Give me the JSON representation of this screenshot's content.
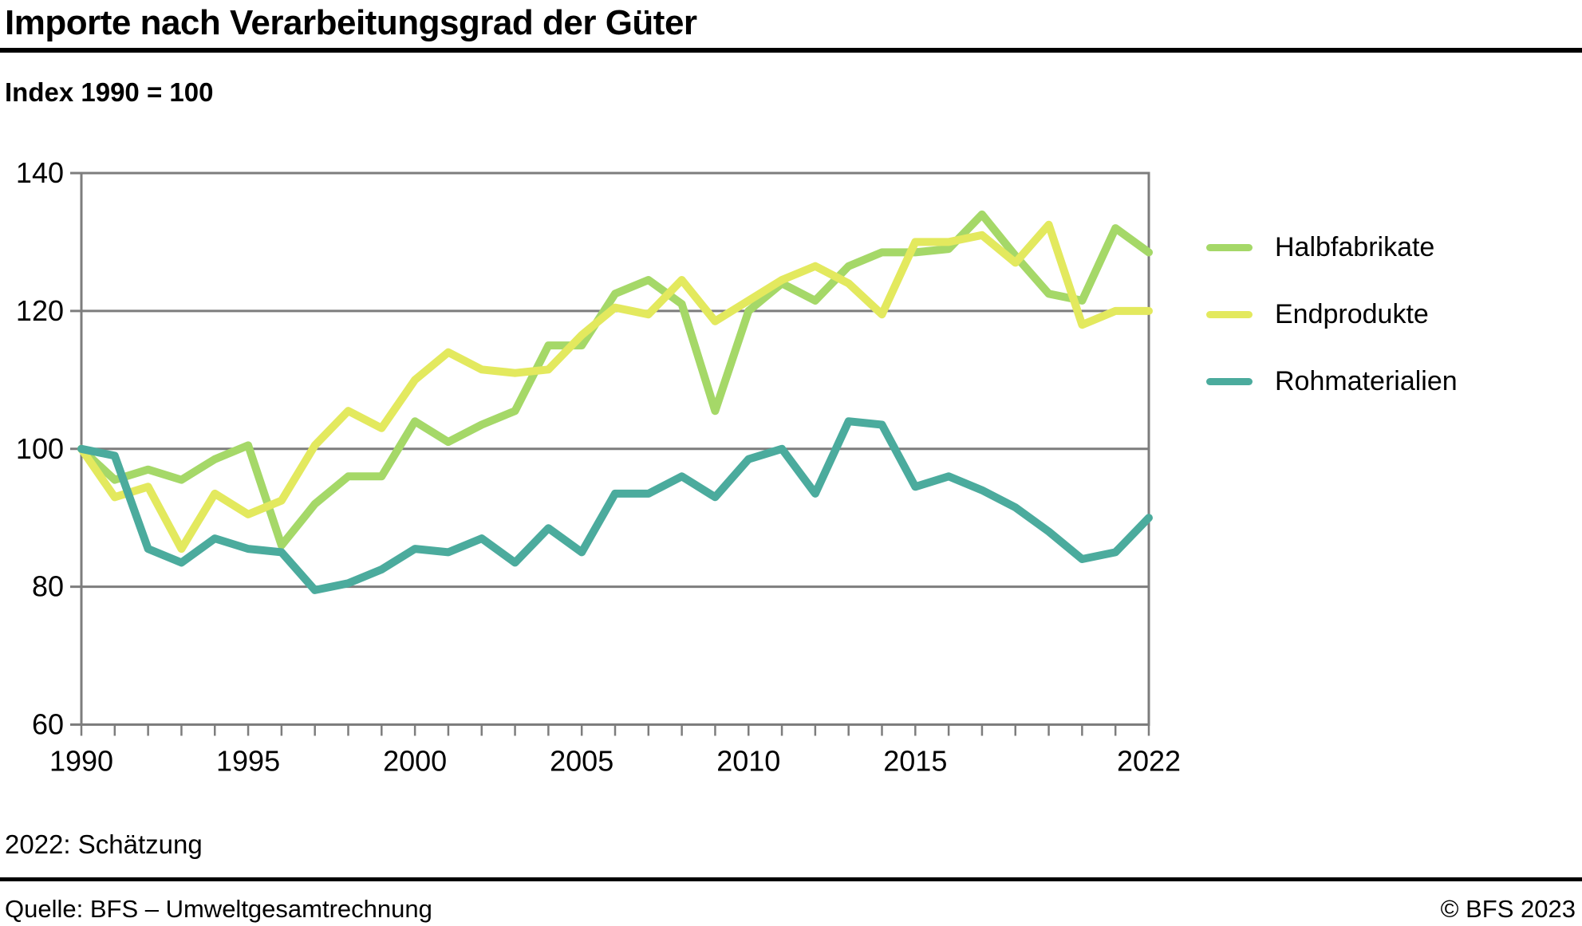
{
  "title": "Importe nach Verarbeitungsgrad der Güter",
  "subtitle": "Index 1990 = 100",
  "footnote": "2022: Schätzung",
  "footer": {
    "source": "Quelle: BFS – Umweltgesamtrechnung",
    "copyright": "© BFS 2023"
  },
  "legend": {
    "items": [
      {
        "label": "Halbfabrikate"
      },
      {
        "label": "Endprodukte"
      },
      {
        "label": "Rohmaterialien"
      }
    ]
  },
  "colors": {
    "halbfabrikate": "#a5d868",
    "endprodukte": "#e3e95e",
    "rohmaterialien": "#4bab9d",
    "grid": "#7d7d7d",
    "rule": "#000000",
    "text": "#000000",
    "background": "#ffffff"
  },
  "chart_data": {
    "type": "line",
    "title": "Importe nach Verarbeitungsgrad der Güter",
    "ylabel": "Index 1990 = 100",
    "xlabel": "",
    "ylim": [
      60,
      140
    ],
    "yticks": [
      60,
      80,
      100,
      120,
      140
    ],
    "xticks_labeled": [
      1990,
      1995,
      2000,
      2005,
      2010,
      2015,
      2022
    ],
    "grid": true,
    "legend_position": "right",
    "x": [
      1990,
      1991,
      1992,
      1993,
      1994,
      1995,
      1996,
      1997,
      1998,
      1999,
      2000,
      2001,
      2002,
      2003,
      2004,
      2005,
      2006,
      2007,
      2008,
      2009,
      2010,
      2011,
      2012,
      2013,
      2014,
      2015,
      2016,
      2017,
      2018,
      2019,
      2020,
      2021,
      2022
    ],
    "series": [
      {
        "name": "Halbfabrikate",
        "color": "#a5d868",
        "values": [
          100,
          95.5,
          97,
          95.5,
          98.5,
          100.5,
          86,
          92,
          96,
          96,
          104,
          101,
          103.5,
          105.5,
          115,
          115,
          122.5,
          124.5,
          121,
          105.5,
          120,
          124,
          121.5,
          126.5,
          128.5,
          128.5,
          129,
          134,
          128,
          122.5,
          121.5,
          132,
          128.5
        ]
      },
      {
        "name": "Endprodukte",
        "color": "#e3e95e",
        "values": [
          100,
          93,
          94.5,
          85.5,
          93.5,
          90.5,
          92.5,
          100.5,
          105.5,
          103,
          110,
          114,
          111.5,
          111,
          111.5,
          116.5,
          120.5,
          119.5,
          124.5,
          118.5,
          121.5,
          124.5,
          126.5,
          124,
          119.5,
          130,
          130,
          131,
          127,
          132.5,
          118,
          120,
          120
        ]
      },
      {
        "name": "Rohmaterialien",
        "color": "#4bab9d",
        "values": [
          100,
          99,
          85.5,
          83.5,
          87,
          85.5,
          85,
          79.5,
          80.5,
          82.5,
          85.5,
          85,
          87,
          83.5,
          88.5,
          85,
          93.5,
          93.5,
          96,
          93,
          98.5,
          100,
          93.5,
          104,
          103.5,
          94.5,
          96,
          94,
          91.5,
          88,
          84,
          85,
          90
        ]
      }
    ]
  }
}
